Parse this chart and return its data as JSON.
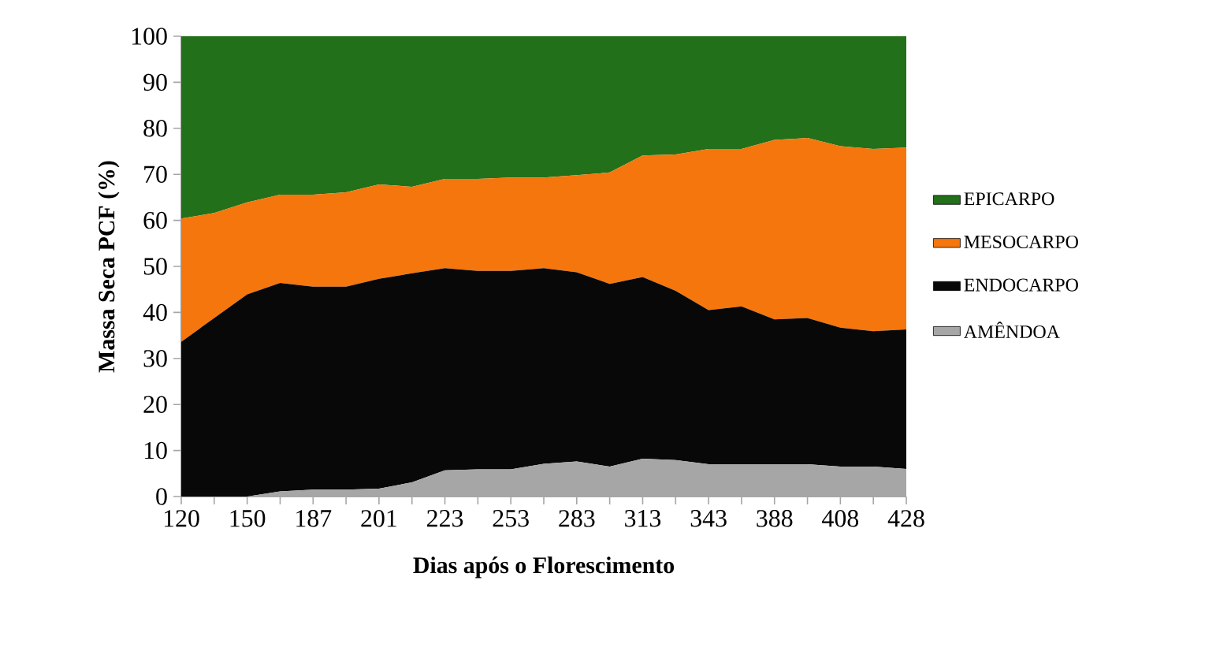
{
  "chart_data": {
    "type": "area",
    "stacked": true,
    "xlabel": "Dias após o Florescimento",
    "ylabel": "Massa Seca PCF (%)",
    "categories": [
      "120",
      null,
      "150",
      null,
      "187",
      null,
      "201",
      null,
      "223",
      null,
      "253",
      null,
      "283",
      null,
      "313",
      null,
      "343",
      null,
      "388",
      null,
      "408",
      null,
      "428"
    ],
    "series": [
      {
        "name": "AMÊNDOA",
        "color": "#a6a6a6",
        "values": [
          0,
          0,
          0,
          1.1,
          1.5,
          1.5,
          1.7,
          3.1,
          5.7,
          5.9,
          5.9,
          7.1,
          7.6,
          6.5,
          8.2,
          7.9,
          7.0,
          7.0,
          7.0,
          7.0,
          6.5,
          6.5,
          6.0
        ]
      },
      {
        "name": "ENDOCARPO",
        "color": "#080808",
        "values": [
          33.6,
          38.8,
          43.9,
          45.3,
          44.1,
          44.1,
          45.6,
          45.4,
          43.9,
          43.1,
          43.1,
          42.5,
          41.1,
          39.7,
          39.5,
          36.8,
          33.5,
          34.3,
          31.5,
          31.8,
          30.2,
          29.4,
          30.3
        ]
      },
      {
        "name": "MESOCARPO",
        "color": "#f5760c",
        "values": [
          26.8,
          22.8,
          20.0,
          19.2,
          20.0,
          20.5,
          20.5,
          18.8,
          19.4,
          20.0,
          20.3,
          19.7,
          21.1,
          24.2,
          26.4,
          29.6,
          35.0,
          34.2,
          39.0,
          39.1,
          39.4,
          39.6,
          39.5
        ]
      },
      {
        "name": "EPICARPO",
        "color": "#23701a",
        "values": [
          39.6,
          38.4,
          36.1,
          34.4,
          34.4,
          33.9,
          32.2,
          32.7,
          31.0,
          31.0,
          30.7,
          30.7,
          30.2,
          29.6,
          25.9,
          25.7,
          24.5,
          24.5,
          22.5,
          22.1,
          23.9,
          24.5,
          24.2
        ]
      }
    ],
    "ylim": [
      0,
      100
    ],
    "yticks": [
      0,
      10,
      20,
      30,
      40,
      50,
      60,
      70,
      80,
      90,
      100
    ],
    "legend": "right"
  }
}
